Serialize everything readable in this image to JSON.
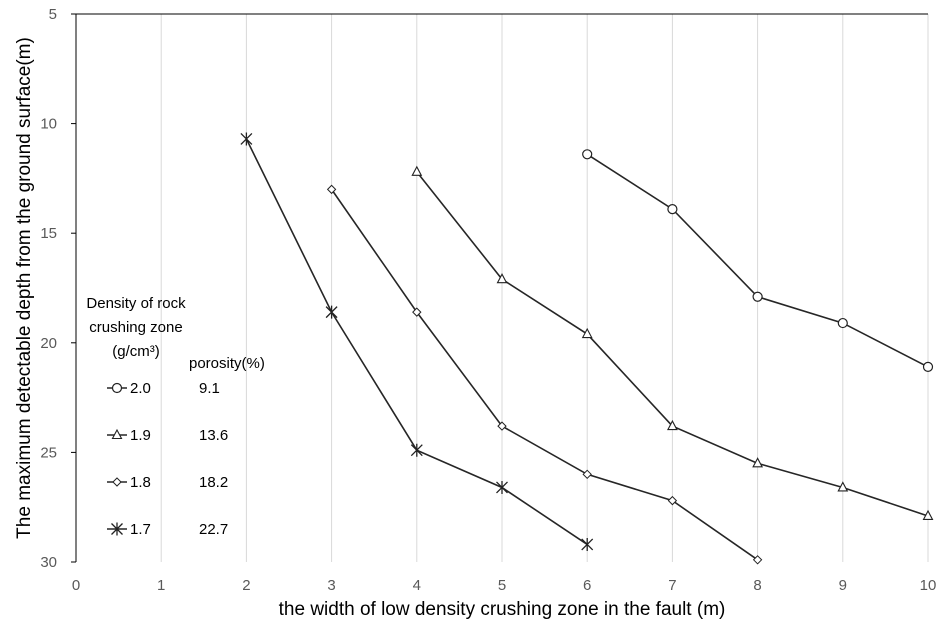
{
  "chart_data": {
    "type": "line",
    "title": "",
    "xlabel": "the width of low density crushing zone in the fault (m)",
    "ylabel": "The maximum detectable depth from the ground surface(m)",
    "xlim": [
      0,
      10
    ],
    "ylim": [
      5,
      30
    ],
    "y_reversed": true,
    "xticks": [
      "0",
      "1",
      "2",
      "3",
      "4",
      "5",
      "6",
      "7",
      "8",
      "9",
      "10"
    ],
    "yticks": [
      "5",
      "10",
      "15",
      "20",
      "25",
      "30"
    ],
    "grid": "vertical",
    "legend": {
      "title_lines": [
        "Density of rock",
        "crushing zone",
        "(g/cm³)"
      ],
      "porosity_header": "porosity(%)",
      "placement": "left-middle"
    },
    "series": [
      {
        "name": "2.0",
        "porosity": "9.1",
        "marker": "circle",
        "x": [
          6,
          7,
          8,
          9,
          10
        ],
        "y": [
          11.4,
          13.9,
          17.9,
          19.1,
          21.1
        ]
      },
      {
        "name": "1.9",
        "porosity": "13.6",
        "marker": "triangle",
        "x": [
          4,
          5,
          6,
          7,
          8,
          9,
          10
        ],
        "y": [
          12.2,
          17.1,
          19.6,
          23.8,
          25.5,
          26.6,
          27.9
        ]
      },
      {
        "name": "1.8",
        "porosity": "18.2",
        "marker": "diamond",
        "x": [
          3,
          4,
          5,
          6,
          7,
          8
        ],
        "y": [
          13.0,
          18.6,
          23.8,
          26.0,
          27.2,
          29.9
        ]
      },
      {
        "name": "1.7",
        "porosity": "22.7",
        "marker": "star",
        "x": [
          2,
          3,
          4,
          5,
          6
        ],
        "y": [
          10.7,
          18.6,
          24.9,
          26.6,
          29.2
        ]
      }
    ]
  }
}
